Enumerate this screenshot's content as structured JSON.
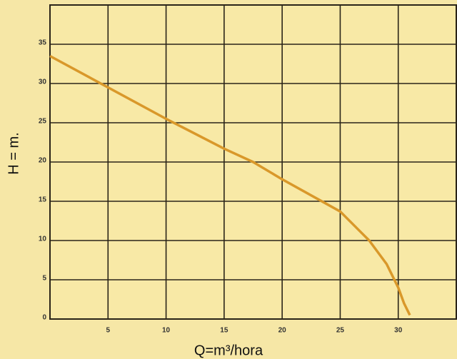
{
  "chart_data": {
    "type": "line",
    "xlabel": "Q=m³/hora",
    "ylabel": "H = m.",
    "x": [
      0,
      5,
      10,
      15,
      17.5,
      20,
      25,
      27.5,
      29,
      30,
      30.5,
      31
    ],
    "series": [
      {
        "color": "#d9982a",
        "values": [
          33.5,
          29.5,
          25.5,
          21.7,
          20,
          17.8,
          13.7,
          10,
          7,
          4,
          2,
          0.5
        ]
      }
    ],
    "xlim": [
      0,
      35
    ],
    "ylim": [
      0,
      40
    ],
    "xticks": [
      5,
      10,
      15,
      20,
      25,
      30
    ],
    "yticks": [
      0,
      5,
      10,
      15,
      20,
      25,
      30,
      35
    ],
    "grid": true
  }
}
